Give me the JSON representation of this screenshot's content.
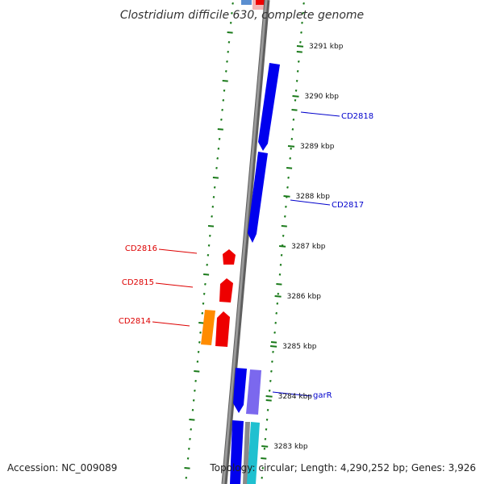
{
  "title": "Clostridium difficile 630, complete genome",
  "footer": {
    "accession": "Accession: NC_009089",
    "summary": "Topology: circular; Length: 4,290,252 bp; Genes: 3,926"
  },
  "colors": {
    "backbone": "#808080",
    "gc_skew": "#1a7a1a",
    "forward_cds": "#0000ee",
    "reverse_cds": "#ee0000",
    "rna": "#ff8c00",
    "lavender_feature": "#7b68ee",
    "cyan_feature": "#20c0d0",
    "forward_label": "#0000cc",
    "reverse_label": "#dd0000"
  },
  "ticks": [
    "3291 kbp",
    "3290 kbp",
    "3289 kbp",
    "3288 kbp",
    "3287 kbp",
    "3286 kbp",
    "3285 kbp",
    "3284 kbp",
    "3283 kbp"
  ],
  "gene_labels": [
    {
      "id": "CD2818",
      "strand": "forward"
    },
    {
      "id": "CD2817",
      "strand": "forward"
    },
    {
      "id": "CD2816",
      "strand": "reverse"
    },
    {
      "id": "CD2815",
      "strand": "reverse"
    },
    {
      "id": "CD2814",
      "strand": "reverse"
    },
    {
      "id": "garR",
      "strand": "forward"
    }
  ]
}
